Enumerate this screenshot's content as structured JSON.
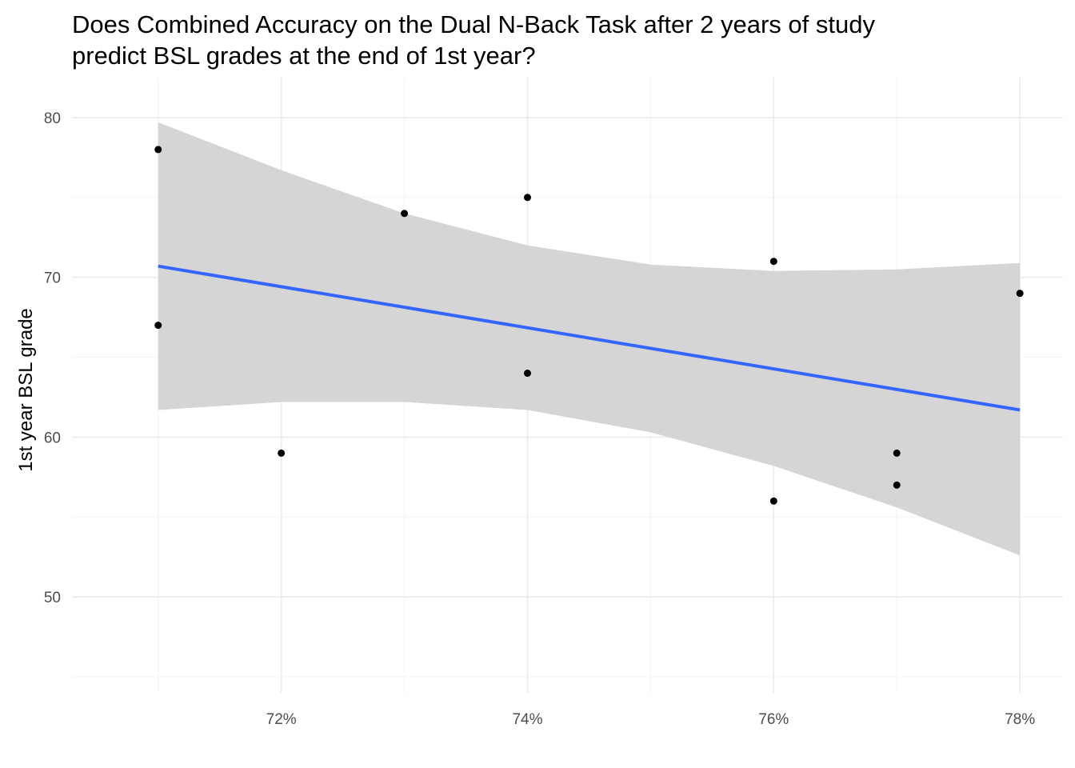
{
  "chart_data": {
    "type": "scatter",
    "title_lines": [
      "Does Combined Accuracy on the Dual N-Back Task after 2 years of study",
      "predict BSL grades at the end of 1st year?"
    ],
    "xlabel": "",
    "ylabel": "1st year BSL grade",
    "x_tick_values": [
      72,
      74,
      76,
      78
    ],
    "x_tick_labels": [
      "72%",
      "74%",
      "76%",
      "78%"
    ],
    "y_tick_values": [
      50,
      60,
      70,
      80
    ],
    "y_tick_labels": [
      "50",
      "60",
      "70",
      "80"
    ],
    "xlim": [
      70.3,
      78.35
    ],
    "ylim": [
      44,
      82.5
    ],
    "grid": true,
    "points": [
      {
        "x": 71,
        "y": 78
      },
      {
        "x": 71,
        "y": 67
      },
      {
        "x": 72,
        "y": 59
      },
      {
        "x": 73,
        "y": 74
      },
      {
        "x": 74,
        "y": 75
      },
      {
        "x": 74,
        "y": 64
      },
      {
        "x": 76,
        "y": 71
      },
      {
        "x": 76,
        "y": 56
      },
      {
        "x": 77,
        "y": 59
      },
      {
        "x": 77,
        "y": 57
      },
      {
        "x": 78,
        "y": 69
      }
    ],
    "fit": {
      "x": [
        71,
        78
      ],
      "y": [
        70.7,
        61.7
      ]
    },
    "confidence_band": {
      "x": [
        71,
        72,
        73,
        74,
        75,
        76,
        77,
        78
      ],
      "upper": [
        79.7,
        76.7,
        74.0,
        72.0,
        70.8,
        70.4,
        70.5,
        70.9
      ],
      "lower": [
        61.7,
        62.2,
        62.2,
        61.7,
        60.3,
        58.2,
        55.6,
        52.6
      ]
    },
    "colors": {
      "band": "#d4d4d4",
      "fit_line": "#3366ff",
      "points": "#000000",
      "grid_major": "#ebebeb",
      "grid_minor": "#f4f4f4"
    }
  }
}
